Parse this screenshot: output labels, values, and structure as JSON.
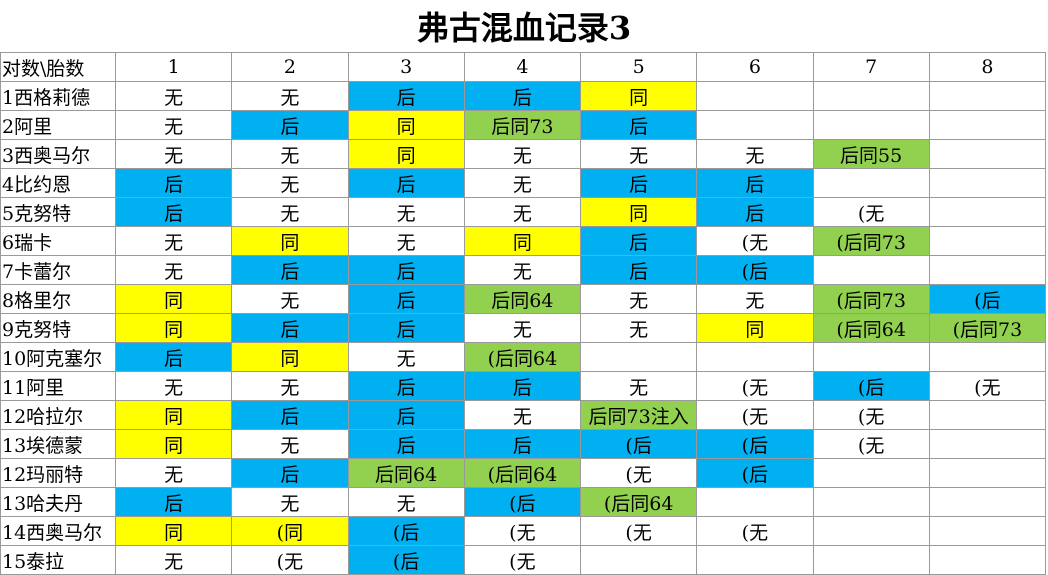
{
  "title": "弗古混血记录3",
  "table": {
    "header": [
      "对数\\胎数",
      1,
      2,
      3,
      4,
      5,
      6,
      7,
      8
    ],
    "rows": [
      [
        "1西格莉德",
        "无",
        "无",
        "后",
        "后",
        "同",
        null,
        null,
        null
      ],
      [
        "2阿里",
        "无",
        "后",
        "同",
        "后同73",
        "后",
        null,
        null,
        null
      ],
      [
        "3西奥马尔",
        "无",
        "无",
        "同",
        "无",
        "无",
        "无",
        "后同55",
        null
      ],
      [
        "4比约恩",
        "后",
        "无",
        "后",
        "无",
        "后",
        "后",
        null,
        null
      ],
      [
        "5克努特",
        "后",
        "无",
        "无",
        "无",
        "同",
        "后",
        "(无",
        null
      ],
      [
        "6瑞卡",
        "无",
        "同",
        "无",
        "同",
        "后",
        "(无",
        "(后同73",
        null
      ],
      [
        "7卡蕾尔",
        "无",
        "后",
        "后",
        "无",
        "后",
        "(后",
        null,
        null
      ],
      [
        "8格里尔",
        "同",
        "无",
        "后",
        "后同64",
        "无",
        "无",
        "(后同73",
        "(后"
      ],
      [
        "9克努特",
        "同",
        "后",
        "后",
        "无",
        "无",
        "同",
        "(后同64",
        "(后同73"
      ],
      [
        "10阿克塞尔",
        "后",
        "同",
        "无",
        "(后同64",
        null,
        null,
        null,
        null
      ],
      [
        "11阿里",
        "无",
        "无",
        "后",
        "后",
        "无",
        "(无",
        "(后",
        "(无"
      ],
      [
        "12哈拉尔",
        "同",
        "后",
        "后",
        "无",
        "后同73注入",
        "(无",
        "(无",
        null
      ],
      [
        "13埃德蒙",
        "同",
        "无",
        "后",
        "后",
        "(后",
        "(后",
        "(无",
        null
      ],
      [
        "12玛丽特",
        "无",
        "后",
        "后同64",
        "(后同64",
        "(无",
        "(后",
        null,
        null
      ],
      [
        "13哈夫丹",
        "后",
        "无",
        "无",
        "(后",
        "(后同64",
        null,
        null,
        null
      ],
      [
        "14西奥马尔",
        "同",
        "(同",
        "(后",
        "(无",
        "(无",
        "(无",
        null,
        null
      ],
      [
        "15泰拉",
        "无",
        "(无",
        "(后",
        "(无",
        null,
        null,
        null,
        null
      ]
    ],
    "fills": [
      [
        null,
        null,
        null,
        "#00b0f0",
        "#00b0f0",
        "#ffff00",
        null,
        null,
        null
      ],
      [
        null,
        null,
        "#00b0f0",
        "#ffff00",
        "#92d050",
        "#00b0f0",
        null,
        null,
        null
      ],
      [
        null,
        null,
        null,
        "#ffff00",
        null,
        null,
        null,
        "#92d050",
        null
      ],
      [
        null,
        "#00b0f0",
        null,
        "#00b0f0",
        null,
        "#00b0f0",
        "#00b0f0",
        null,
        null
      ],
      [
        null,
        "#00b0f0",
        null,
        null,
        null,
        "#ffff00",
        "#00b0f0",
        null,
        null
      ],
      [
        null,
        null,
        "#ffff00",
        null,
        "#ffff00",
        "#00b0f0",
        null,
        "#92d050",
        null
      ],
      [
        null,
        null,
        "#00b0f0",
        "#00b0f0",
        null,
        "#00b0f0",
        "#00b0f0",
        null,
        null
      ],
      [
        null,
        "#ffff00",
        null,
        "#00b0f0",
        "#92d050",
        null,
        null,
        "#92d050",
        "#00b0f0"
      ],
      [
        null,
        "#ffff00",
        "#00b0f0",
        "#00b0f0",
        null,
        null,
        "#ffff00",
        "#92d050",
        "#92d050"
      ],
      [
        null,
        "#00b0f0",
        "#ffff00",
        null,
        "#92d050",
        null,
        null,
        null,
        null
      ],
      [
        null,
        null,
        null,
        "#00b0f0",
        "#00b0f0",
        null,
        null,
        "#00b0f0",
        null
      ],
      [
        null,
        "#ffff00",
        "#00b0f0",
        "#00b0f0",
        null,
        "#92d050",
        null,
        null,
        null
      ],
      [
        null,
        "#ffff00",
        null,
        "#00b0f0",
        "#00b0f0",
        "#00b0f0",
        "#00b0f0",
        null,
        null
      ],
      [
        null,
        null,
        "#00b0f0",
        "#92d050",
        "#92d050",
        null,
        "#00b0f0",
        null,
        null
      ],
      [
        null,
        "#00b0f0",
        null,
        null,
        "#00b0f0",
        "#92d050",
        null,
        null,
        null
      ],
      [
        null,
        "#ffff00",
        "#ffff00",
        "#00b0f0",
        null,
        null,
        null,
        null,
        null
      ],
      [
        null,
        null,
        null,
        "#00b0f0",
        null,
        null,
        null,
        null,
        null
      ]
    ]
  }
}
